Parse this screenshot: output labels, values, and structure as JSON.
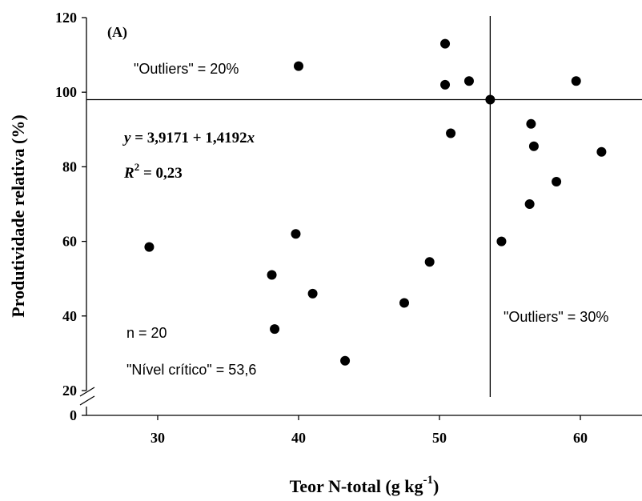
{
  "chart_data": {
    "type": "scatter",
    "panel_label": "(A)",
    "xlabel": "Teor N-total (g kg",
    "xlabel_sup": "-1",
    "xlabel_end": ")",
    "ylabel": "Produtividade relativa (%)",
    "xlim": [
      25,
      65
    ],
    "ylim": [
      20,
      120
    ],
    "y_axis_break": true,
    "x_ticks": [
      30,
      40,
      50,
      60
    ],
    "x_tick_labels": [
      "30",
      "40",
      "50",
      "60"
    ],
    "y_ticks": [
      20,
      40,
      60,
      80,
      100,
      120
    ],
    "y_tick_labels": [
      "20",
      "40",
      "60",
      "80",
      "100",
      "120"
    ],
    "y_break_label": "0",
    "hline_y": 98,
    "vline_x": 53.6,
    "points": [
      {
        "x": 29.4,
        "y": 58.5
      },
      {
        "x": 38.1,
        "y": 51
      },
      {
        "x": 38.3,
        "y": 36.5
      },
      {
        "x": 39.8,
        "y": 62
      },
      {
        "x": 40.0,
        "y": 107
      },
      {
        "x": 41.0,
        "y": 46
      },
      {
        "x": 43.3,
        "y": 28
      },
      {
        "x": 47.5,
        "y": 43.5
      },
      {
        "x": 49.3,
        "y": 54.5
      },
      {
        "x": 50.4,
        "y": 113
      },
      {
        "x": 50.4,
        "y": 102
      },
      {
        "x": 50.8,
        "y": 89
      },
      {
        "x": 52.1,
        "y": 103
      },
      {
        "x": 53.6,
        "y": 98
      },
      {
        "x": 54.4,
        "y": 60
      },
      {
        "x": 56.4,
        "y": 70
      },
      {
        "x": 56.5,
        "y": 91.5
      },
      {
        "x": 56.7,
        "y": 85.5
      },
      {
        "x": 58.3,
        "y": 76
      },
      {
        "x": 59.7,
        "y": 103
      },
      {
        "x": 61.5,
        "y": 84
      }
    ],
    "annotations": {
      "outliers_top": "\"Outliers\" = 20%",
      "outliers_bottom": "\"Outliers\" = 30%",
      "n": "n = 20",
      "nivel_critico": "\"Nível crítico\" = 53,6",
      "eq_y": "y",
      "eq_rhs": " = 3,9171 + 1,4192",
      "eq_x": "x",
      "r2_r": "R",
      "r2_sup": "2",
      "r2_rhs": " = 0,23"
    }
  }
}
